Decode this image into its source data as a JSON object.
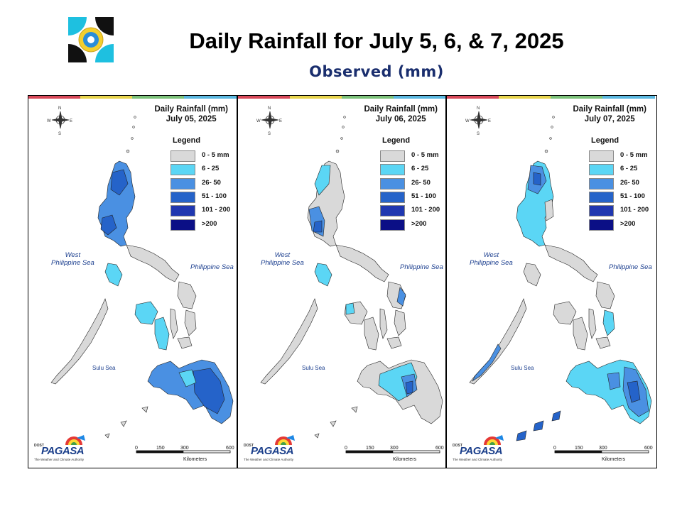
{
  "title": "Daily Rainfall for July 5, 6, & 7, 2025",
  "subtitle": "Observed (mm)",
  "legend": {
    "title": "Legend",
    "items": [
      {
        "label": "0 - 5 mm",
        "color": "#d9d9d9"
      },
      {
        "label": "6 - 25",
        "color": "#5bd6f5"
      },
      {
        "label": "26- 50",
        "color": "#4a90e2"
      },
      {
        "label": "51 - 100",
        "color": "#2563c9"
      },
      {
        "label": "101 - 200",
        "color": "#1f37b0"
      },
      {
        "label": ">200",
        "color": "#0b0f86"
      }
    ]
  },
  "panels": [
    {
      "heading": "Daily Rainfall (mm)",
      "date": "July 05, 2025"
    },
    {
      "heading": "Daily Rainfall (mm)",
      "date": "July 06, 2025"
    },
    {
      "heading": "Daily Rainfall (mm)",
      "date": "July 07, 2025"
    }
  ],
  "labels": {
    "west_sea_1": "West",
    "west_sea_2": "Philippine Sea",
    "phil_sea": "Philippine Sea",
    "sulu_sea": "Sulu Sea",
    "compass_n": "N",
    "compass_s": "S",
    "compass_e": "E",
    "compass_w": "W"
  },
  "scale": {
    "ticks": [
      "0",
      "150",
      "300",
      "600"
    ],
    "unit": "Kilometers"
  },
  "brand": {
    "small": "DOST",
    "name": "PAGASA",
    "tagline": "The Weather and Climate Authority"
  }
}
